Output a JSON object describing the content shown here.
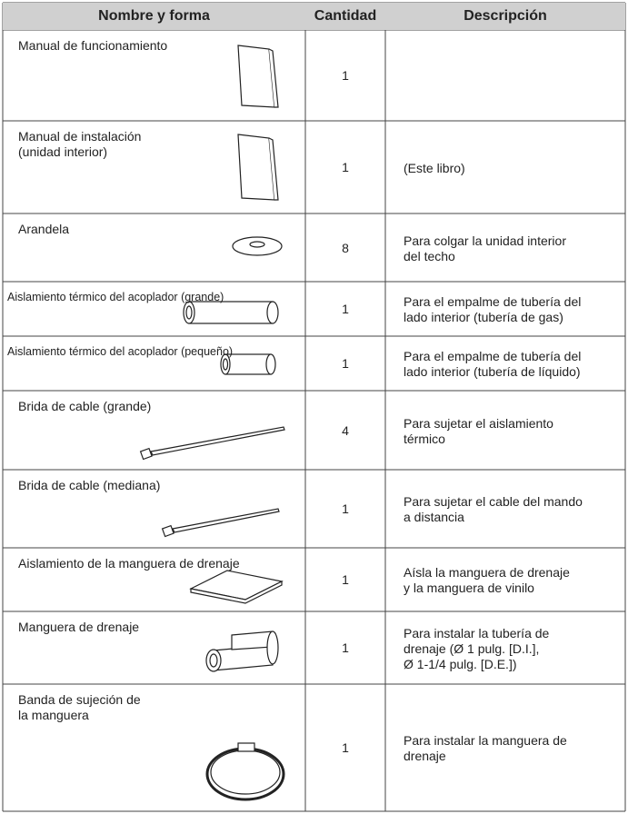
{
  "table": {
    "header": [
      "Nombre y forma",
      "Cantidad",
      "Descripción"
    ],
    "rows": [
      {
        "name": [
          "Manual de funcionamiento"
        ],
        "quantity": 1
      },
      {
        "name": [
          "Manual de instalación",
          "(unidad interior)"
        ],
        "quantity": 1,
        "description": [
          "(Este libro)"
        ]
      },
      {
        "name": [
          "Arandela"
        ],
        "quantity": 8,
        "description": [
          "Para colgar la unidad interior",
          "del techo"
        ]
      },
      {
        "name": [
          "Aislamiento térmico del acoplador (grande)"
        ],
        "quantity": 1,
        "description": [
          "Para el empalme de tubería del",
          "lado interior (tubería de gas)"
        ]
      },
      {
        "name": [
          "Aislamiento térmico del acoplador (pequeño)"
        ],
        "quantity": 1,
        "description": [
          "Para el empalme de tubería del",
          "lado interior (tubería de líquido)"
        ]
      },
      {
        "name": [
          "Brida de cable (grande)"
        ],
        "quantity": 4,
        "description": [
          "Para sujetar el aislamiento",
          "térmico"
        ]
      },
      {
        "name": [
          "Brida de cable (mediana)"
        ],
        "quantity": 1,
        "description": [
          "Para sujetar el cable del mando",
          "a distancia"
        ]
      },
      {
        "name": [
          "Aislamiento de la manguera de drenaje"
        ],
        "quantity": 1,
        "description": [
          "Aísla la manguera de drenaje",
          "y la manguera de vinilo"
        ]
      },
      {
        "name": [
          "Manguera de drenaje"
        ],
        "quantity": 1,
        "description": [
          "Para instalar la tubería de",
          "drenaje (Ø 1 pulg. [D.I.],",
          "Ø 1-1/4 pulg. [D.E.])"
        ]
      },
      {
        "name": [
          "Banda de sujeción de",
          "la manguera"
        ],
        "quantity": 1,
        "description": [
          "Para instalar la manguera de",
          "drenaje"
        ]
      }
    ]
  }
}
